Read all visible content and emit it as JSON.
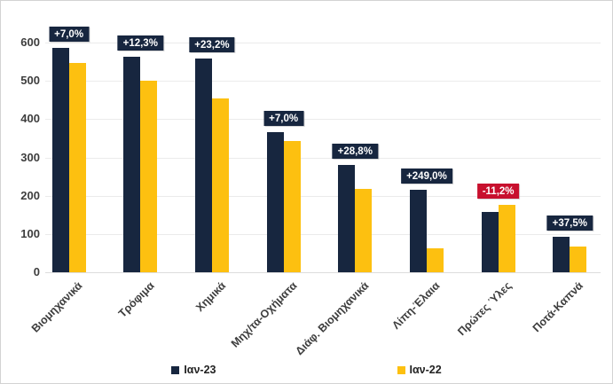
{
  "chart_data": {
    "type": "bar",
    "title": "",
    "xlabel": "",
    "ylabel": "",
    "categories": [
      "Βιομηχανικά",
      "Τρόφιμα",
      "Χημικά",
      "Μηχ/τα-Οχήματα",
      "Διάφ. Βιομηχανικά",
      "Λίπη-Έλαια",
      "Πρώτες Ύλες",
      "Ποτά-Καπνά"
    ],
    "series": [
      {
        "name": "Ιαν-23",
        "color": "#17263f",
        "values": [
          585,
          562,
          558,
          366,
          281,
          216,
          157,
          93
        ]
      },
      {
        "name": "Ιαν-22",
        "color": "#fdc010",
        "values": [
          547,
          500,
          453,
          342,
          218,
          62,
          177,
          67
        ]
      }
    ],
    "change_labels": [
      {
        "text": "+7,0%",
        "bg": "#17263f",
        "fg": "#ffffff"
      },
      {
        "text": "+12,3%",
        "bg": "#17263f",
        "fg": "#ffffff"
      },
      {
        "text": "+23,2%",
        "bg": "#17263f",
        "fg": "#ffffff"
      },
      {
        "text": "+7,0%",
        "bg": "#17263f",
        "fg": "#ffffff"
      },
      {
        "text": "+28,8%",
        "bg": "#17263f",
        "fg": "#ffffff"
      },
      {
        "text": "+249,0%",
        "bg": "#17263f",
        "fg": "#ffffff"
      },
      {
        "text": "-11,2%",
        "bg": "#c8102e",
        "fg": "#ffffff"
      },
      {
        "text": "+37,5%",
        "bg": "#17263f",
        "fg": "#ffffff"
      }
    ],
    "y_ticks": [
      0,
      100,
      200,
      300,
      400,
      500,
      600
    ],
    "ylim": [
      0,
      600
    ],
    "grid": true,
    "legend_position": "bottom",
    "colors": {
      "series_1": "#17263f",
      "series_2": "#fdc010",
      "negative_label": "#c8102e",
      "gridline": "#ebebeb",
      "axis_text": "#3d3d3d",
      "frame_border": "#d3d3d3"
    }
  }
}
